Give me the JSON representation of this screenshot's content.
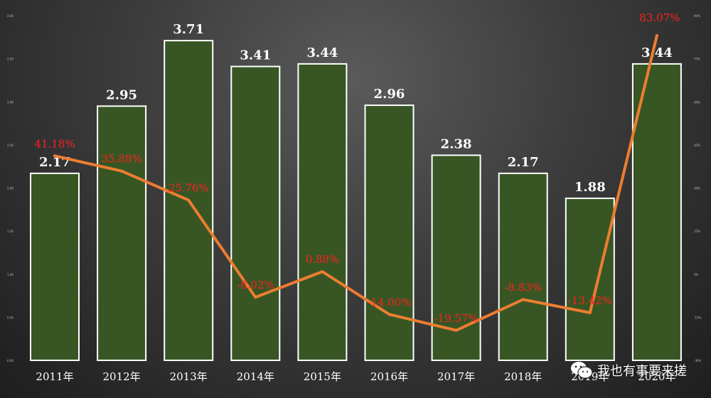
{
  "chart_data": {
    "type": "bar",
    "categories": [
      "2011年",
      "2012年",
      "2013年",
      "2014年",
      "2015年",
      "2016年",
      "2017年",
      "2018年",
      "2019年",
      "2020年"
    ],
    "series": [
      {
        "type": "bar",
        "values": [
          2.17,
          2.95,
          3.71,
          3.41,
          3.44,
          2.96,
          2.38,
          2.17,
          1.88,
          3.44
        ],
        "value_labels": [
          "2.17",
          "2.95",
          "3.71",
          "3.41",
          "3.44",
          "2.96",
          "2.38",
          "2.17",
          "1.88",
          "3.44"
        ],
        "color": "#375623"
      },
      {
        "type": "line",
        "values": [
          41.18,
          35.88,
          25.76,
          -8.02,
          0.88,
          -14.0,
          -19.57,
          -8.83,
          -13.42,
          83.07
        ],
        "value_labels": [
          "41.18%",
          "35.88%",
          "25.76%",
          "-8.02%",
          "0.88%",
          "-14.00%",
          "-19.57%",
          "-8.83%",
          "-13.42%",
          "83.07%"
        ],
        "color": "#ed7d31",
        "label_color": "#ff2020"
      }
    ],
    "ylim": [
      0,
      4
    ],
    "y2lim": [
      -30,
      90
    ],
    "left_ticks": [
      "0.00",
      "0.50",
      "1.00",
      "1.50",
      "2.00",
      "2.50",
      "3.00",
      "3.50",
      "4.00"
    ],
    "right_ticks": [
      "-30%",
      "-15%",
      "0%",
      "15%",
      "30%",
      "45%",
      "60%",
      "75%",
      "90%"
    ],
    "grid": false,
    "title": "",
    "xlabel": "",
    "ylabel": ""
  },
  "watermark": {
    "icon": "wechat-icon",
    "text": "我也有事要来搓"
  }
}
